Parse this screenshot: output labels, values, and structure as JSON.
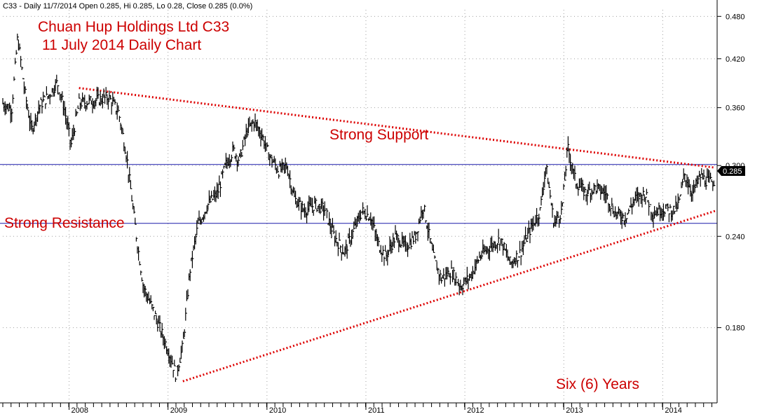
{
  "header": {
    "info": "C33 - Daily 11/7/2014 Open 0.285, Hi 0.285, Lo 0.28, Close 0.285 (0.0%)"
  },
  "annotations": {
    "title_line1": "Chuan Hup Holdings Ltd C33",
    "title_line2": "11 July 2014 Daily Chart",
    "support_label": "Strong Support",
    "resistance_label": "Strong Resistance",
    "duration_label": "Six (6) Years"
  },
  "price_tag": "0.285",
  "colors": {
    "annotation_text": "#cc0000",
    "trend_line": "#dd0000",
    "horizontal_line": "#1a1aaa",
    "bars": "#000000",
    "grid": "#a0a0a0"
  },
  "chart_data": {
    "type": "line",
    "subtype": "ohlc-daily-bars",
    "title": "Chuan Hup Holdings Ltd C33",
    "subtitle": "11 July 2014 Daily Chart",
    "scale": "log",
    "ylim": [
      0.142,
      0.49
    ],
    "xlim": [
      2007.33,
      2014.55
    ],
    "y_ticks": [
      "0.480",
      "0.420",
      "0.360",
      "0.300",
      "0.240",
      "0.180"
    ],
    "x_ticks": [
      {
        "label": "2008",
        "x": 2008.0
      },
      {
        "label": "2009",
        "x": 2009.0
      },
      {
        "label": "2010",
        "x": 2010.0
      },
      {
        "label": "2011",
        "x": 2011.0
      },
      {
        "label": "2012",
        "x": 2012.0
      },
      {
        "label": "2013",
        "x": 2013.0
      },
      {
        "label": "2014",
        "x": 2014.0
      }
    ],
    "grid": true,
    "series": [
      {
        "name": "C33",
        "points": [
          [
            2007.33,
            0.365
          ],
          [
            2007.42,
            0.358
          ],
          [
            2007.48,
            0.45
          ],
          [
            2007.55,
            0.38
          ],
          [
            2007.62,
            0.335
          ],
          [
            2007.7,
            0.362
          ],
          [
            2007.8,
            0.375
          ],
          [
            2007.88,
            0.39
          ],
          [
            2007.95,
            0.36
          ],
          [
            2008.02,
            0.32
          ],
          [
            2008.1,
            0.365
          ],
          [
            2008.25,
            0.368
          ],
          [
            2008.4,
            0.372
          ],
          [
            2008.5,
            0.355
          ],
          [
            2008.58,
            0.31
          ],
          [
            2008.68,
            0.24
          ],
          [
            2008.75,
            0.205
          ],
          [
            2008.85,
            0.19
          ],
          [
            2008.95,
            0.175
          ],
          [
            2009.02,
            0.165
          ],
          [
            2009.08,
            0.155
          ],
          [
            2009.15,
            0.17
          ],
          [
            2009.22,
            0.215
          ],
          [
            2009.3,
            0.248
          ],
          [
            2009.4,
            0.265
          ],
          [
            2009.5,
            0.275
          ],
          [
            2009.58,
            0.3
          ],
          [
            2009.66,
            0.315
          ],
          [
            2009.72,
            0.305
          ],
          [
            2009.8,
            0.335
          ],
          [
            2009.87,
            0.345
          ],
          [
            2009.95,
            0.33
          ],
          [
            2010.02,
            0.31
          ],
          [
            2010.12,
            0.295
          ],
          [
            2010.2,
            0.3
          ],
          [
            2010.28,
            0.27
          ],
          [
            2010.38,
            0.26
          ],
          [
            2010.48,
            0.265
          ],
          [
            2010.58,
            0.262
          ],
          [
            2010.68,
            0.24
          ],
          [
            2010.78,
            0.228
          ],
          [
            2010.88,
            0.245
          ],
          [
            2010.96,
            0.26
          ],
          [
            2011.05,
            0.255
          ],
          [
            2011.12,
            0.235
          ],
          [
            2011.2,
            0.225
          ],
          [
            2011.3,
            0.24
          ],
          [
            2011.4,
            0.232
          ],
          [
            2011.5,
            0.24
          ],
          [
            2011.58,
            0.265
          ],
          [
            2011.68,
            0.225
          ],
          [
            2011.76,
            0.21
          ],
          [
            2011.86,
            0.215
          ],
          [
            2011.96,
            0.205
          ],
          [
            2012.06,
            0.212
          ],
          [
            2012.15,
            0.225
          ],
          [
            2012.25,
            0.232
          ],
          [
            2012.36,
            0.238
          ],
          [
            2012.46,
            0.22
          ],
          [
            2012.56,
            0.228
          ],
          [
            2012.66,
            0.245
          ],
          [
            2012.76,
            0.26
          ],
          [
            2012.82,
            0.3
          ],
          [
            2012.9,
            0.25
          ],
          [
            2012.98,
            0.26
          ],
          [
            2013.04,
            0.318
          ],
          [
            2013.12,
            0.285
          ],
          [
            2013.22,
            0.275
          ],
          [
            2013.32,
            0.28
          ],
          [
            2013.42,
            0.275
          ],
          [
            2013.52,
            0.258
          ],
          [
            2013.62,
            0.255
          ],
          [
            2013.72,
            0.27
          ],
          [
            2013.82,
            0.275
          ],
          [
            2013.9,
            0.258
          ],
          [
            2014.0,
            0.262
          ],
          [
            2014.1,
            0.26
          ],
          [
            2014.16,
            0.265
          ],
          [
            2014.22,
            0.292
          ],
          [
            2014.3,
            0.275
          ],
          [
            2014.38,
            0.29
          ],
          [
            2014.46,
            0.285
          ],
          [
            2014.53,
            0.285
          ]
        ]
      }
    ],
    "trendlines": [
      {
        "name": "",
        "x1": 2008.1,
        "y1": 0.383,
        "x2": 2014.53,
        "y2": 0.298
      },
      {
        "name": "",
        "x1": 2009.15,
        "y1": 0.152,
        "x2": 2014.53,
        "y2": 0.26
      }
    ],
    "hlines": [
      {
        "label": "Strong Support",
        "y": 0.301
      },
      {
        "label": "Strong Resistance",
        "y": 0.25
      }
    ],
    "last_price": 0.285
  }
}
